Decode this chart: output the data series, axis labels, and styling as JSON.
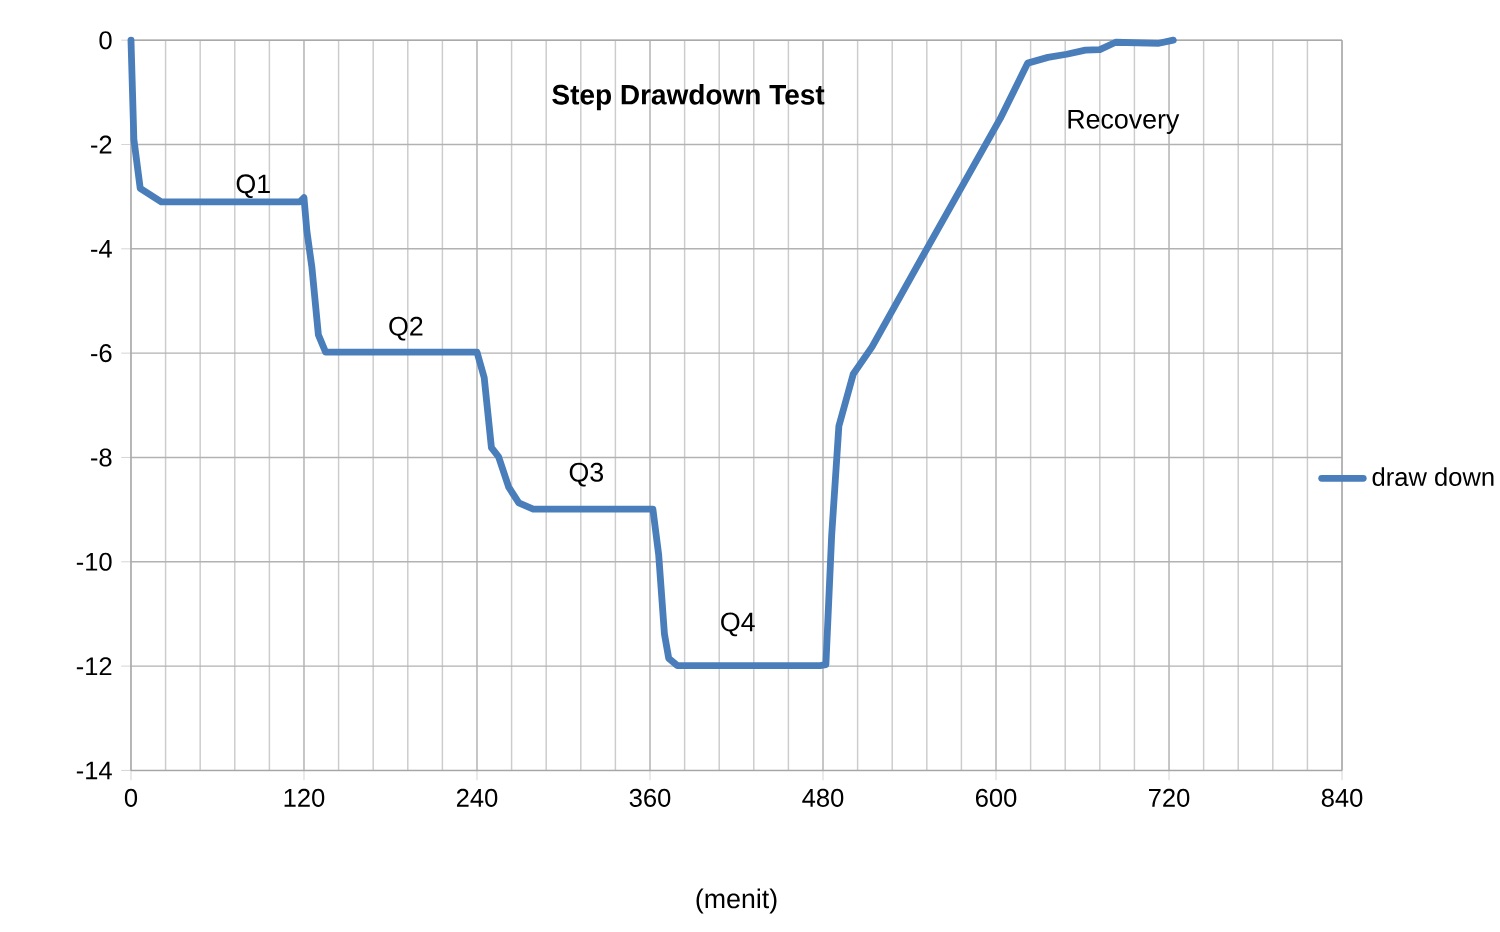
{
  "chart_data": {
    "type": "line",
    "title": "Step Drawdown Test",
    "xlabel": "(menit)",
    "xlim": [
      0,
      840
    ],
    "xticks": [
      0,
      120,
      240,
      360,
      480,
      600,
      720,
      840
    ],
    "ylim": [
      -14,
      0
    ],
    "yticks": [
      -14,
      -12,
      -10,
      -8,
      -6,
      -4,
      -2,
      0
    ],
    "grid": true,
    "legend": "right",
    "marker": "none",
    "line_style": "solid",
    "series": [
      {
        "name": "draw down",
        "color": "#4a7ebb",
        "x": [
          0,
          2,
          6.4,
          21,
          117,
          120,
          122,
          125.5,
          130,
          135,
          240,
          245,
          250,
          255,
          262,
          269,
          279,
          362,
          366,
          370,
          373,
          379,
          478,
          482,
          486,
          491,
          501,
          514,
          552,
          603,
          622,
          636,
          649,
          662,
          672,
          683,
          713,
          723
        ],
        "values": [
          0,
          -1.9,
          -2.84,
          -3.1,
          -3.1,
          -3.02,
          -3.66,
          -4.36,
          -5.65,
          -5.98,
          -5.98,
          -6.47,
          -7.81,
          -7.99,
          -8.57,
          -8.87,
          -8.99,
          -8.99,
          -9.86,
          -11.38,
          -11.85,
          -11.99,
          -11.99,
          -11.97,
          -9.5,
          -7.4,
          -6.4,
          -5.88,
          -4.0,
          -1.5,
          -0.44,
          -0.33,
          -0.27,
          -0.19,
          -0.18,
          -0.04,
          -0.06,
          0
        ]
      }
    ],
    "annotations": [
      "Q1",
      "Q2",
      "Q3",
      "Q4",
      "Recovery"
    ]
  }
}
